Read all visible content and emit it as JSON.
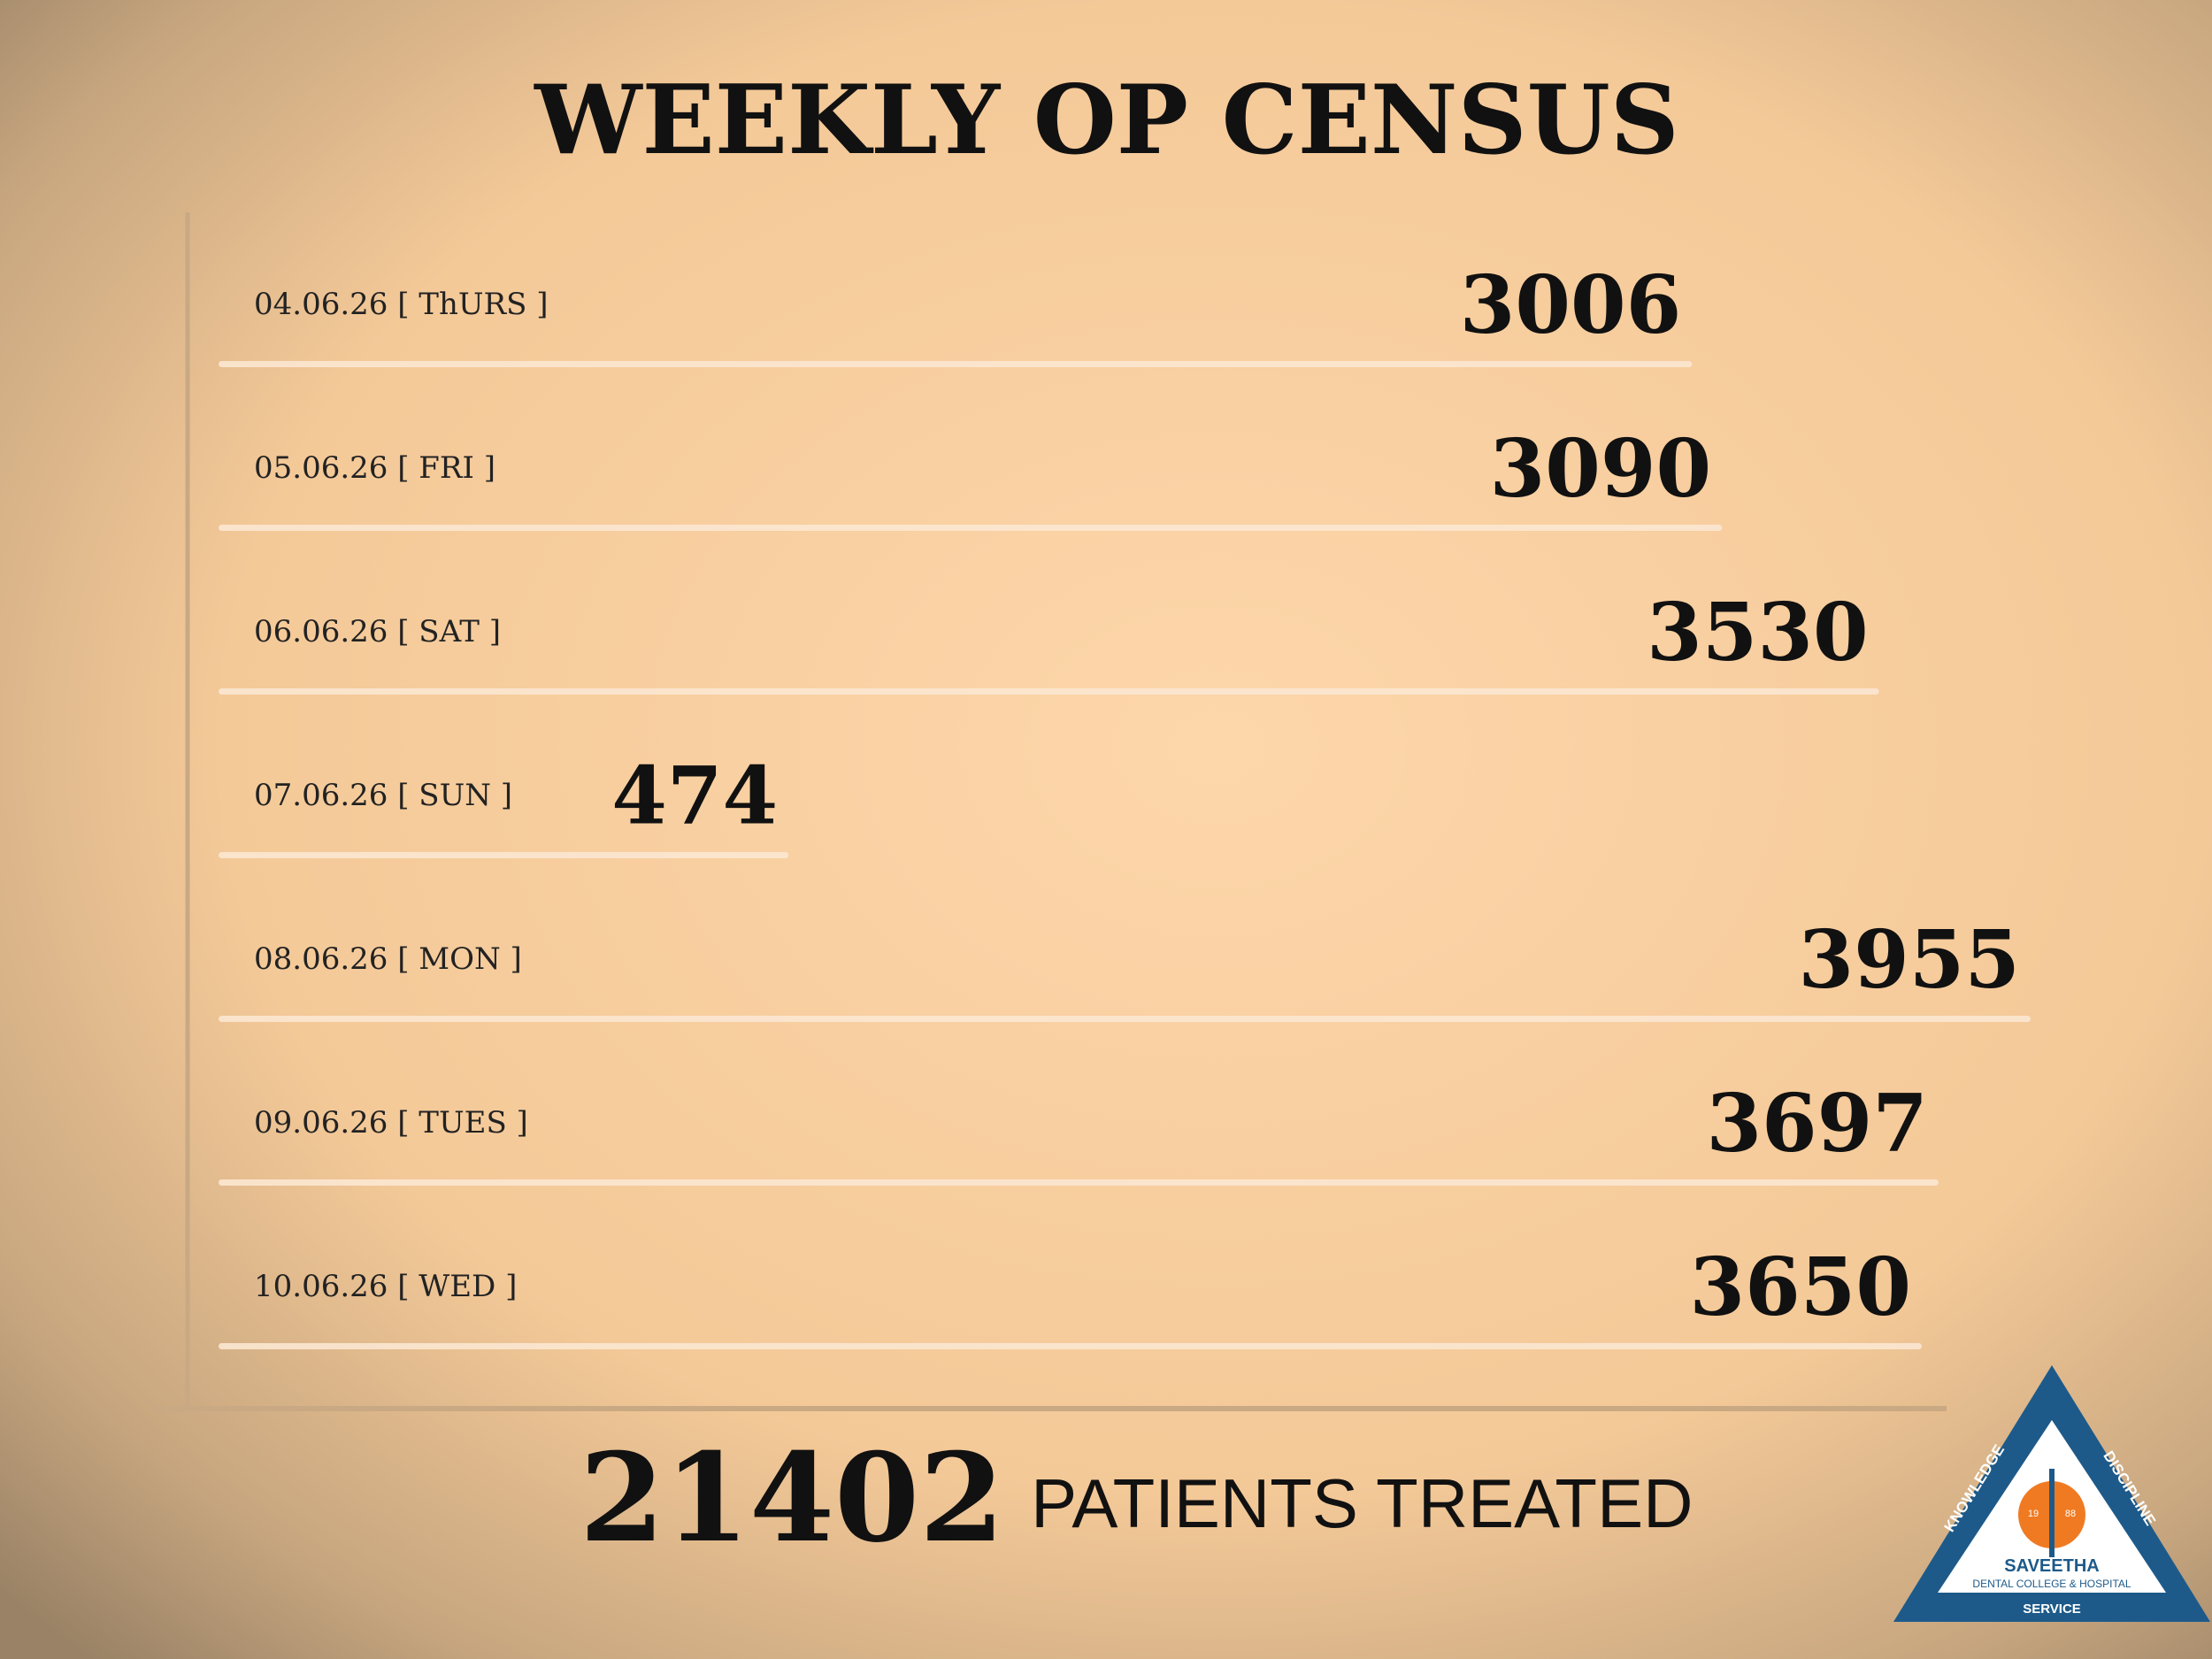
{
  "chart_data": {
    "type": "bar",
    "orientation": "horizontal",
    "title": "WEEKLY OP CENSUS",
    "categories": [
      "04.06.26 [ ThURS ]",
      "05.06.26 [ FRI ]",
      "06.06.26 [ SAT ]",
      "07.06.26 [ SUN ]",
      "08.06.26 [ MON ]",
      "09.06.26 [ TUES ]",
      "10.06.26 [ WED ]"
    ],
    "values": [
      3006,
      3090,
      3530,
      474,
      3955,
      3697,
      3650
    ],
    "color": "#fbe7d2",
    "total": 21402,
    "total_label": "PATIENTS TREATED"
  },
  "logo": {
    "left": "KNOWLEDGE",
    "right": "DISCIPLINE",
    "year_left": "19",
    "year_right": "88",
    "name": "SAVEETHA",
    "subtitle": "DENTAL COLLEGE & HOSPITAL",
    "bottom": "SERVICE"
  }
}
